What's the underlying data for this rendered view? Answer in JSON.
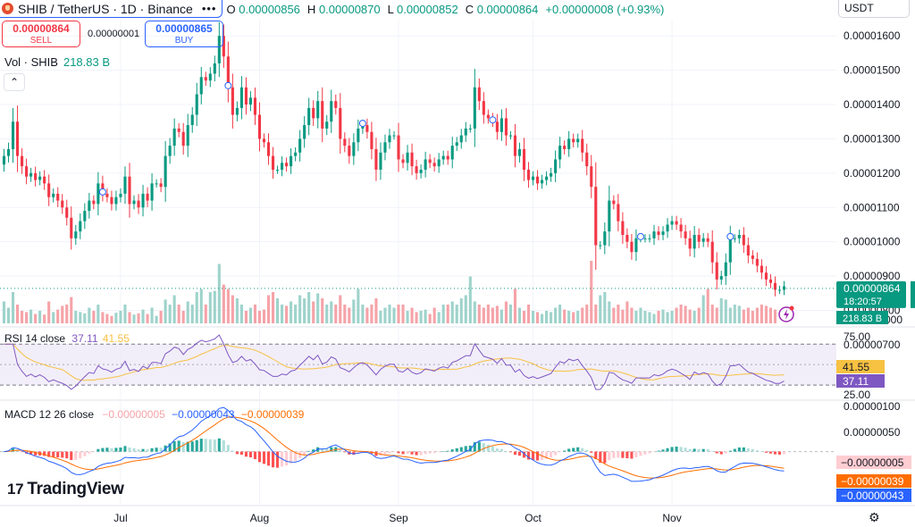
{
  "header": {
    "symbol": "SHIB / TetherUS · 1D · Binance",
    "more_icon": "more-icon",
    "open_label": "O",
    "open_value": "0.00000856",
    "high_label": "H",
    "high_value": "0.00000870",
    "low_label": "L",
    "low_value": "0.00000852",
    "close_label": "C",
    "close_value": "0.00000864",
    "change": "+0.00000008 (+0.93%)"
  },
  "trade": {
    "sell_price": "0.00000864",
    "sell_label": "SELL",
    "spread": "0.00000001",
    "buy_price": "0.00000865",
    "buy_label": "BUY"
  },
  "currency": "USDT",
  "volume": {
    "label": "Vol · SHIB",
    "value": "218.83 B"
  },
  "price_scale": {
    "ticks": [
      "0.00001600",
      "0.00001500",
      "0.00001400",
      "0.00001300",
      "0.00001200",
      "0.00001100",
      "0.00001000",
      "0.00000900",
      "0.00000800",
      "0.00000700"
    ],
    "last_price": "0.00000864",
    "countdown": "18:20:57",
    "volume_tag": "218.83 B",
    "clipped_tick": "000"
  },
  "rsi": {
    "label": "RSI 14 close",
    "rsi_value": "37.11",
    "ma_value": "41.55",
    "upper": "75.00",
    "lower": "25.00"
  },
  "macd": {
    "label": "MACD 12 26 close",
    "hist_value": "−0.00000005",
    "macd_value": "−0.00000043",
    "signal_value": "−0.00000039",
    "scale_ticks": [
      "0.00000100",
      "0.00000050"
    ]
  },
  "time_axis": [
    "Jul",
    "Aug",
    "Sep",
    "Oct",
    "Nov"
  ],
  "branding": "TradingView",
  "colors": {
    "up": "#089981",
    "down": "#f23645",
    "up_vol": "#9ed3cb",
    "down_vol": "#f5a3a8",
    "rsi": "#7e57c2",
    "rsi_ma": "#f7c142",
    "macd": "#2962ff",
    "signal": "#ff6d00"
  },
  "chart_data": {
    "type": "candlestick",
    "title": "SHIB / TetherUS · 1D · Binance",
    "start_date": "2024-06-05",
    "interval": "1D",
    "ylim": [
      7.7e-06,
      1.65e-05
    ],
    "series": [
      {
        "name": "close",
        "values": [
          1.25e-05,
          1.27e-05,
          1.35e-05,
          1.25e-05,
          1.22e-05,
          1.19e-05,
          1.2e-05,
          1.18e-05,
          1.19e-05,
          1.17e-05,
          1.13e-05,
          1.14e-05,
          1.12e-05,
          1.1e-05,
          1.07e-05,
          1.01e-05,
          1.03e-05,
          1.06e-05,
          1.09e-05,
          1.12e-05,
          1.11e-05,
          1.17e-05,
          1.14e-05,
          1.13e-05,
          1.11e-05,
          1.13e-05,
          1.14e-05,
          1.19e-05,
          1.11e-05,
          1.12e-05,
          1.1e-05,
          1.14e-05,
          1.12e-05,
          1.17e-05,
          1.17e-05,
          1.16e-05,
          1.25e-05,
          1.28e-05,
          1.33e-05,
          1.32e-05,
          1.28e-05,
          1.34e-05,
          1.37e-05,
          1.43e-05,
          1.48e-05,
          1.47e-05,
          1.49e-05,
          1.52e-05,
          1.6e-05,
          1.54e-05,
          1.45e-05,
          1.37e-05,
          1.39e-05,
          1.45e-05,
          1.4e-05,
          1.42e-05,
          1.37e-05,
          1.3e-05,
          1.29e-05,
          1.25e-05,
          1.21e-05,
          1.21e-05,
          1.23e-05,
          1.22e-05,
          1.25e-05,
          1.26e-05,
          1.3e-05,
          1.34e-05,
          1.39e-05,
          1.36e-05,
          1.41e-05,
          1.33e-05,
          1.35e-05,
          1.41e-05,
          1.39e-05,
          1.3e-05,
          1.28e-05,
          1.25e-05,
          1.29e-05,
          1.33e-05,
          1.34e-05,
          1.32e-05,
          1.27e-05,
          1.21e-05,
          1.26e-05,
          1.29e-05,
          1.31e-05,
          1.31e-05,
          1.24e-05,
          1.23e-05,
          1.26e-05,
          1.22e-05,
          1.2e-05,
          1.21e-05,
          1.24e-05,
          1.23e-05,
          1.22e-05,
          1.24e-05,
          1.25e-05,
          1.24e-05,
          1.28e-05,
          1.29e-05,
          1.31e-05,
          1.33e-05,
          1.33e-05,
          1.45e-05,
          1.41e-05,
          1.37e-05,
          1.36e-05,
          1.35e-05,
          1.32e-05,
          1.36e-05,
          1.31e-05,
          1.31e-05,
          1.25e-05,
          1.27e-05,
          1.21e-05,
          1.18e-05,
          1.19e-05,
          1.17e-05,
          1.18e-05,
          1.19e-05,
          1.2e-05,
          1.24e-05,
          1.28e-05,
          1.27e-05,
          1.3e-05,
          1.29e-05,
          1.3e-05,
          1.26e-05,
          1.22e-05,
          1.16e-05,
          9.9e-06,
          9.9e-06,
          1.03e-05,
          1.12e-05,
          1.11e-05,
          1.06e-05,
          1.02e-05,
          1e-05,
          9.7e-06,
          1.01e-05,
          1.01e-05,
          1.01e-05,
          1.01e-05,
          1.03e-05,
          1.02e-05,
          1.03e-05,
          1.05e-05,
          1.06e-05,
          1.05e-05,
          1.03e-05,
          1.01e-05,
          9.8e-06,
          1.02e-05,
          1e-05,
          1.01e-05,
          1e-05,
          9.4e-06,
          8.9e-06,
          9e-06,
          9.4e-06,
          1.01e-05,
          1.01e-05,
          1.02e-05,
          9.9e-06,
          9.6e-06,
          9.5e-06,
          9.3e-06,
          9.1e-06,
          8.9e-06,
          8.8e-06,
          8.6e-06,
          8.6e-06,
          8.7e-06
        ]
      },
      {
        "name": "volume_relative",
        "values": [
          0.35,
          0.25,
          0.5,
          0.3,
          0.2,
          0.18,
          0.22,
          0.15,
          0.2,
          0.14,
          0.35,
          0.18,
          0.22,
          0.28,
          0.3,
          0.42,
          0.2,
          0.18,
          0.16,
          0.25,
          0.2,
          0.3,
          0.18,
          0.15,
          0.12,
          0.17,
          0.2,
          0.3,
          0.18,
          0.14,
          0.16,
          0.22,
          0.15,
          0.25,
          0.12,
          0.2,
          0.38,
          0.3,
          0.45,
          0.3,
          0.2,
          0.35,
          0.3,
          0.5,
          0.55,
          0.3,
          0.5,
          0.52,
          0.95,
          0.62,
          0.55,
          0.45,
          0.4,
          0.3,
          0.2,
          0.25,
          0.3,
          0.2,
          0.22,
          0.45,
          0.5,
          0.4,
          0.3,
          0.28,
          0.35,
          0.3,
          0.45,
          0.4,
          0.5,
          0.35,
          0.48,
          0.4,
          0.3,
          0.35,
          0.3,
          0.45,
          0.3,
          0.25,
          0.38,
          0.55,
          0.3,
          0.25,
          0.3,
          0.4,
          0.2,
          0.25,
          0.3,
          0.25,
          0.3,
          0.3,
          0.2,
          0.25,
          0.18,
          0.2,
          0.22,
          0.15,
          0.25,
          0.18,
          0.3,
          0.3,
          0.35,
          0.3,
          0.4,
          0.45,
          0.75,
          0.35,
          0.3,
          0.25,
          0.3,
          0.25,
          0.28,
          0.22,
          0.35,
          0.3,
          0.55,
          0.25,
          0.2,
          0.3,
          0.2,
          0.18,
          0.15,
          0.2,
          0.18,
          0.25,
          0.3,
          0.22,
          0.2,
          0.18,
          0.2,
          0.25,
          0.3,
          1.0,
          0.3,
          0.45,
          0.5,
          0.35,
          0.25,
          0.3,
          0.22,
          0.35,
          0.25,
          0.2,
          0.25,
          0.2,
          0.18,
          0.15,
          0.2,
          0.22,
          0.18,
          0.2,
          0.25,
          0.3,
          0.28,
          0.22,
          0.2,
          0.25,
          0.45,
          0.55,
          0.3,
          0.25,
          0.4,
          0.38,
          0.25,
          0.3,
          0.28,
          0.22,
          0.25,
          0.2,
          0.25,
          0.3,
          0.28,
          0.25,
          0.22
        ]
      }
    ],
    "rsi_14": {
      "ylim": [
        17,
        85
      ],
      "guides": [
        70,
        30
      ],
      "mid": 50
    },
    "macd_12_26": {
      "ylim": [
        -1.2e-06,
        1.1e-06
      ]
    },
    "x_labels": [
      "Jul",
      "Aug",
      "Sep",
      "Oct",
      "Nov"
    ]
  }
}
